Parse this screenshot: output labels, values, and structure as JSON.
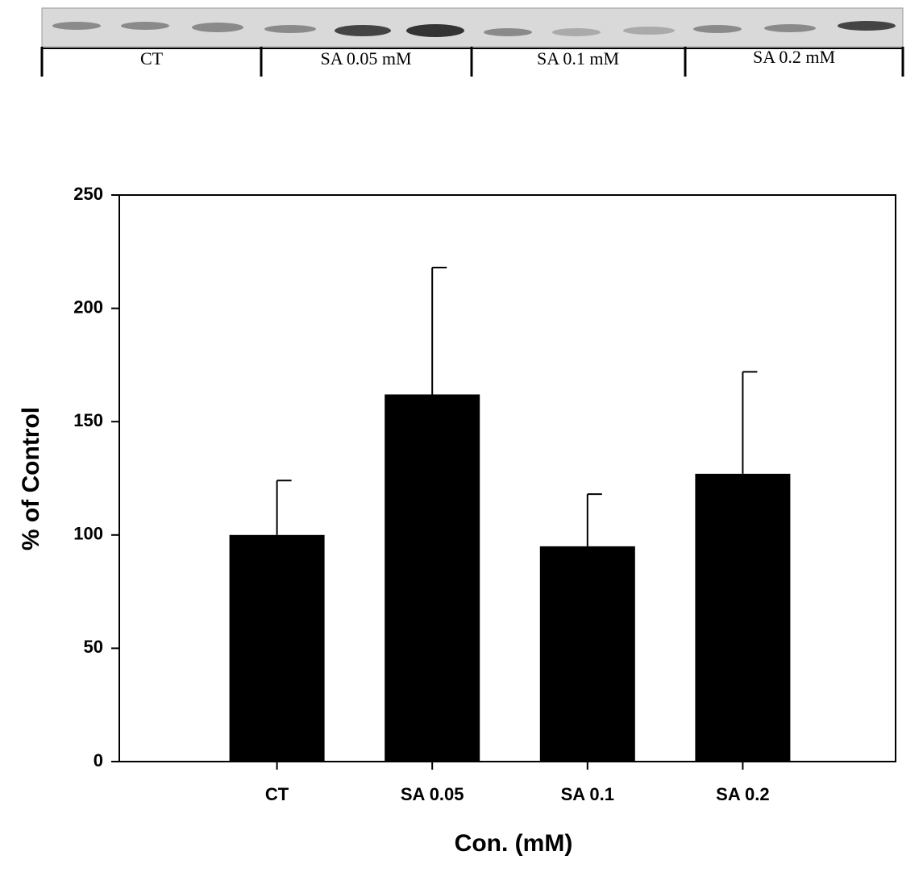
{
  "blot": {
    "lanes": [
      "CT",
      "SA 0.05 mM",
      "SA 0.1 mM",
      "SA 0.2 mM"
    ]
  },
  "chart_data": {
    "type": "bar",
    "categories": [
      "CT",
      "SA 0.05",
      "SA 0.1",
      "SA 0.2"
    ],
    "values": [
      100,
      162,
      95,
      127
    ],
    "errors": [
      24,
      56,
      23,
      45
    ],
    "color": "#000000",
    "ylim": [
      0,
      250
    ],
    "yticks": [
      0,
      50,
      100,
      150,
      200,
      250
    ],
    "y_label": "% of Control",
    "x_label": "Con. (mM)"
  }
}
